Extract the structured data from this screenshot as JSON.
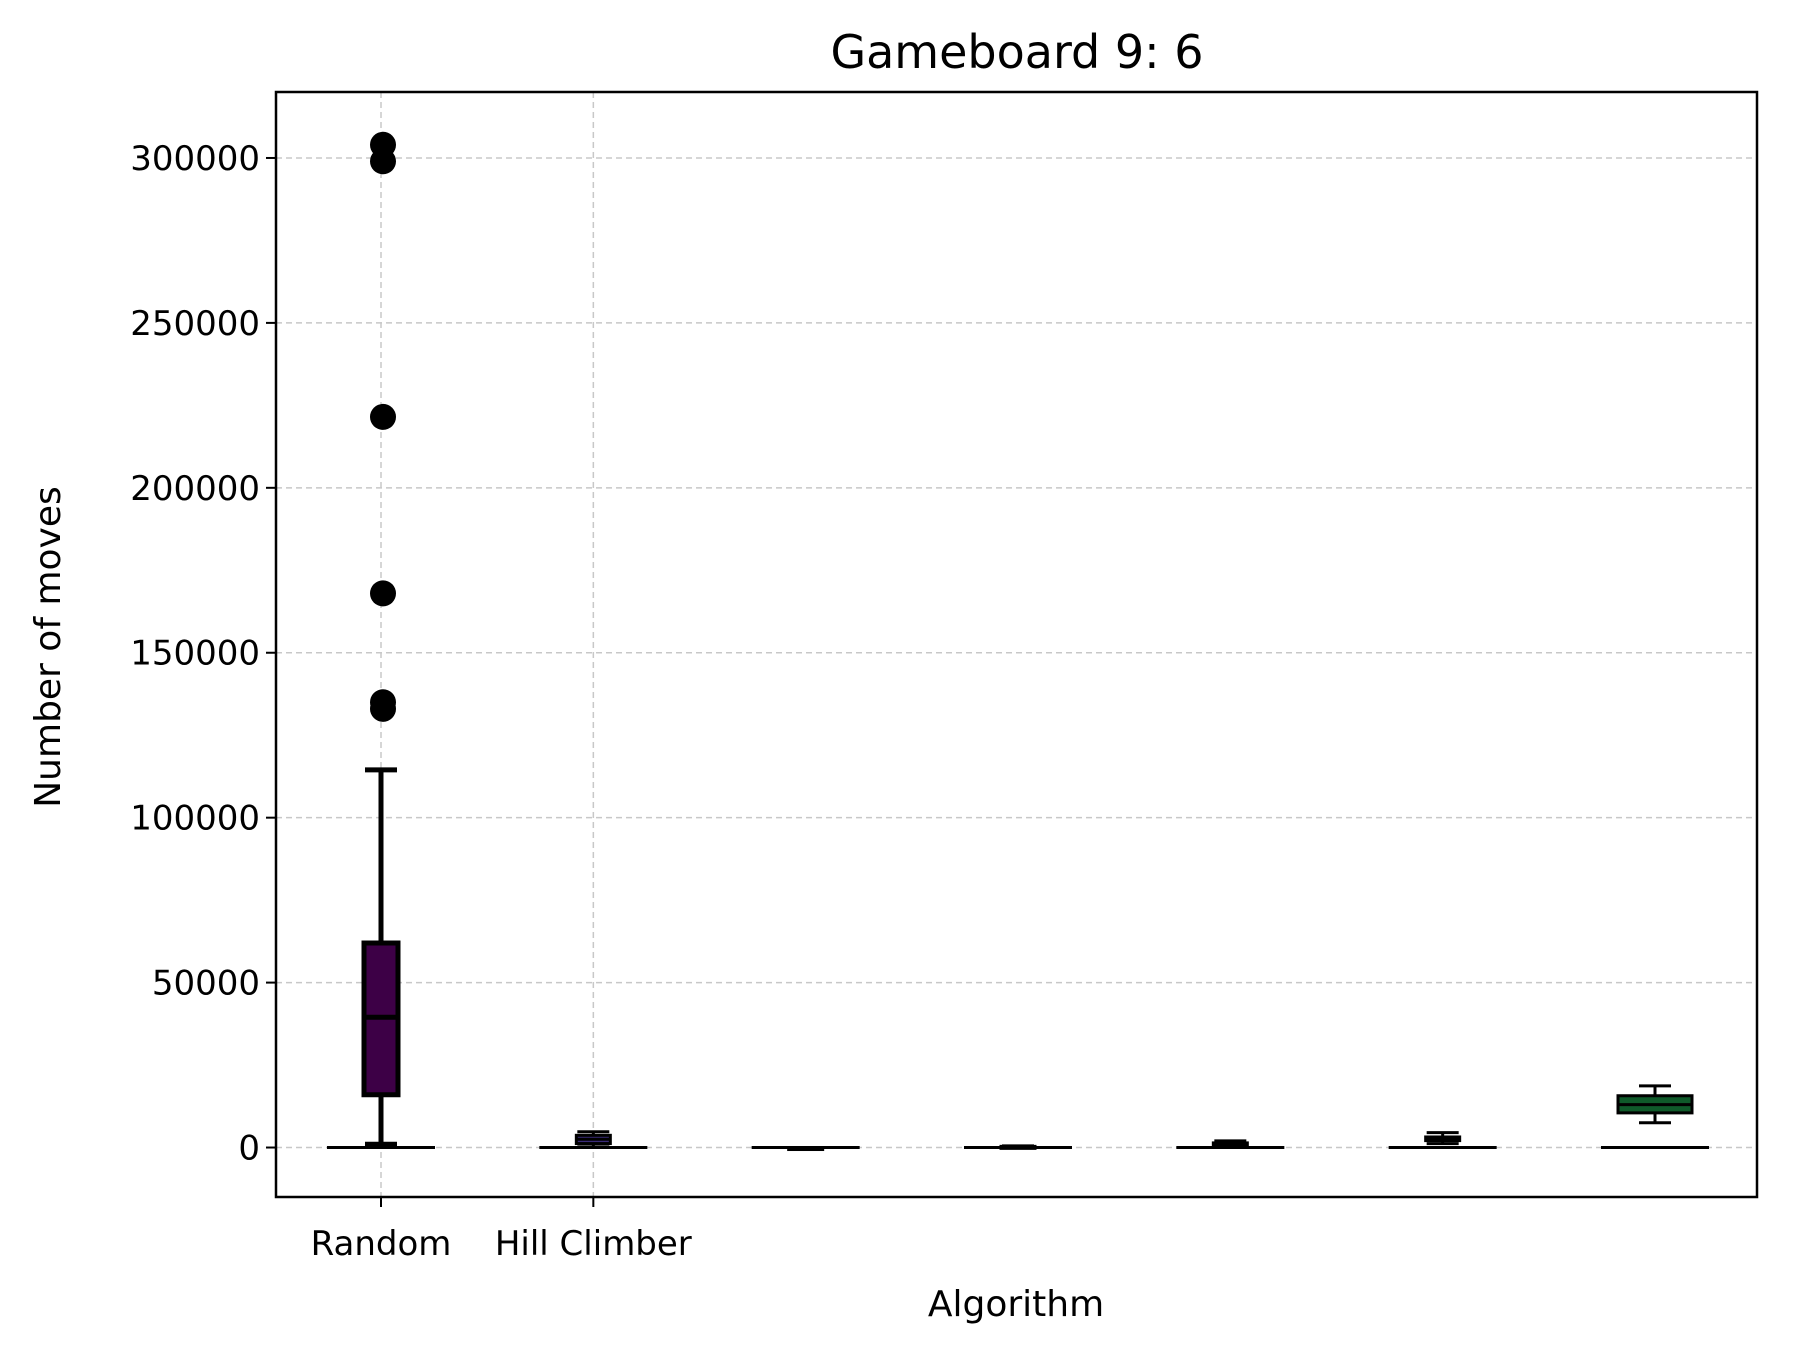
{
  "chart_data": {
    "type": "box",
    "title": "Gameboard 9: 6",
    "xlabel": "Algorithm",
    "ylabel": "Number of moves",
    "ylim": [
      -15000,
      320000
    ],
    "yticks": [
      0,
      50000,
      100000,
      150000,
      200000,
      250000,
      300000
    ],
    "yticks_labels": [
      "0",
      "50000",
      "100000",
      "150000",
      "200000",
      "250000",
      "300000"
    ],
    "grid": true,
    "xtick_labels": [
      "Random",
      "Hill Climber"
    ],
    "boxes": [
      {
        "label": "Random",
        "color": "#3d0046",
        "whisker_low": 1000,
        "q1": 16000,
        "median": 39500,
        "q3": 62000,
        "whisker_high": 114500,
        "outliers": [
          304000,
          299000,
          221500,
          168000,
          135000,
          133000
        ]
      },
      {
        "label": "Hill Climber",
        "color": "#3b2b7a",
        "whisker_low": 200,
        "q1": 1200,
        "median": 2500,
        "q3": 3700,
        "whisker_high": 4800,
        "outliers": []
      },
      {
        "label": "",
        "color": "#2d5a8c",
        "whisker_low": 0,
        "q1": 0,
        "median": 0,
        "q3": 0,
        "whisker_high": 0,
        "outliers": []
      },
      {
        "label": "",
        "color": "#22808a",
        "whisker_low": 50,
        "q1": 150,
        "median": 250,
        "q3": 350,
        "whisker_high": 500,
        "outliers": []
      },
      {
        "label": "",
        "color": "#25a87f",
        "whisker_low": 300,
        "q1": 700,
        "median": 1000,
        "q3": 1400,
        "whisker_high": 2000,
        "outliers": []
      },
      {
        "label": "",
        "color": "#2ea66a",
        "whisker_low": 1200,
        "q1": 2100,
        "median": 2700,
        "q3": 3200,
        "whisker_high": 4500,
        "outliers": []
      },
      {
        "label": "",
        "color": "#0f5a2a",
        "whisker_low": 7500,
        "q1": 10500,
        "median": 13000,
        "q3": 15700,
        "whisker_high": 18700,
        "outliers": []
      }
    ]
  }
}
